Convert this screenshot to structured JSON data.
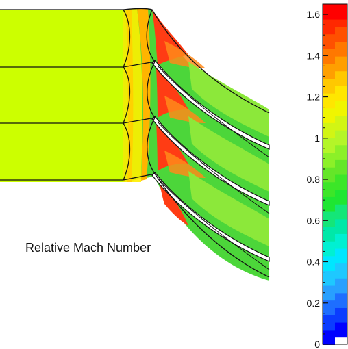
{
  "figure": {
    "label": "Relative Mach Number"
  },
  "colorbar": {
    "ticks": [
      "0",
      "0.2",
      "0.4",
      "0.6",
      "0.8",
      "1",
      "1.2",
      "1.4",
      "1.6"
    ],
    "min": 0,
    "max": 1.65,
    "colors": [
      "#0000ff",
      "#0b3cff",
      "#1e6eff",
      "#28a0ff",
      "#1ec8ff",
      "#00e6ff",
      "#00f0d2",
      "#00e8a8",
      "#14e678",
      "#1ee632",
      "#3ce628",
      "#64e628",
      "#8cf028",
      "#b4f528",
      "#d2f514",
      "#f0f500",
      "#ffe600",
      "#ffc800",
      "#ff9f00",
      "#ff7800",
      "#ff5000",
      "#ff2800",
      "#ff0000"
    ]
  },
  "field_colors": {
    "inlet": "#ccff00",
    "yellow": "#fff000",
    "orange": "#ff8a1a",
    "red": "#ff3c14",
    "green": "#4cd63a",
    "light_green": "#8ce83a",
    "white": "#ffffff",
    "line": "#111111"
  }
}
